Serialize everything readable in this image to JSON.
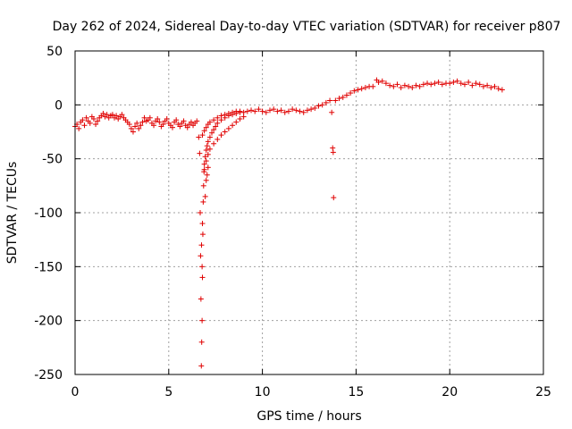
{
  "chart_data": {
    "type": "scatter",
    "title": "Day 262 of 2024, Sidereal Day-to-day VTEC variation (SDTVAR) for receiver p807",
    "xlabel": "GPS time / hours",
    "ylabel": "SDTVAR / TECUs",
    "xlim": [
      0,
      25
    ],
    "ylim": [
      -250,
      50
    ],
    "x_ticks": [
      0,
      5,
      10,
      15,
      20,
      25
    ],
    "y_ticks": [
      -250,
      -200,
      -150,
      -100,
      -50,
      0,
      50
    ],
    "grid": true,
    "marker": "+",
    "color": "#e00000",
    "series": [
      {
        "name": "SDTVAR",
        "points": [
          [
            0.0,
            -20
          ],
          [
            0.1,
            -18
          ],
          [
            0.2,
            -22
          ],
          [
            0.3,
            -16
          ],
          [
            0.4,
            -14
          ],
          [
            0.5,
            -19
          ],
          [
            0.6,
            -12
          ],
          [
            0.7,
            -15
          ],
          [
            0.8,
            -17
          ],
          [
            0.9,
            -11
          ],
          [
            1.0,
            -13
          ],
          [
            1.1,
            -18
          ],
          [
            1.2,
            -15
          ],
          [
            1.3,
            -12
          ],
          [
            1.4,
            -10
          ],
          [
            1.5,
            -8
          ],
          [
            1.6,
            -11
          ],
          [
            1.7,
            -9
          ],
          [
            1.8,
            -12
          ],
          [
            1.9,
            -10
          ],
          [
            2.0,
            -9
          ],
          [
            2.1,
            -12
          ],
          [
            2.2,
            -10
          ],
          [
            2.3,
            -13
          ],
          [
            2.4,
            -11
          ],
          [
            2.5,
            -9
          ],
          [
            2.6,
            -12
          ],
          [
            2.7,
            -14
          ],
          [
            2.8,
            -16
          ],
          [
            2.9,
            -18
          ],
          [
            3.0,
            -22
          ],
          [
            3.1,
            -25
          ],
          [
            3.2,
            -20
          ],
          [
            3.3,
            -17
          ],
          [
            3.4,
            -22
          ],
          [
            3.5,
            -19
          ],
          [
            3.6,
            -16
          ],
          [
            3.7,
            -12
          ],
          [
            3.8,
            -15
          ],
          [
            3.9,
            -14
          ],
          [
            4.0,
            -12
          ],
          [
            4.1,
            -17
          ],
          [
            4.2,
            -19
          ],
          [
            4.3,
            -15
          ],
          [
            4.4,
            -13
          ],
          [
            4.5,
            -16
          ],
          [
            4.6,
            -20
          ],
          [
            4.7,
            -18
          ],
          [
            4.8,
            -15
          ],
          [
            4.9,
            -13
          ],
          [
            5.0,
            -17
          ],
          [
            5.1,
            -19
          ],
          [
            5.2,
            -21
          ],
          [
            5.3,
            -16
          ],
          [
            5.4,
            -14
          ],
          [
            5.5,
            -18
          ],
          [
            5.6,
            -20
          ],
          [
            5.7,
            -17
          ],
          [
            5.8,
            -15
          ],
          [
            5.9,
            -19
          ],
          [
            6.0,
            -21
          ],
          [
            6.1,
            -18
          ],
          [
            6.2,
            -16
          ],
          [
            6.3,
            -19
          ],
          [
            6.4,
            -17
          ],
          [
            6.5,
            -15
          ],
          [
            6.6,
            -30
          ],
          [
            6.65,
            -45
          ],
          [
            6.68,
            -100
          ],
          [
            6.7,
            -140
          ],
          [
            6.72,
            -180
          ],
          [
            6.74,
            -242
          ],
          [
            6.76,
            -220
          ],
          [
            6.78,
            -200
          ],
          [
            6.8,
            -160
          ],
          [
            6.82,
            -120
          ],
          [
            6.84,
            -90
          ],
          [
            6.86,
            -75
          ],
          [
            6.88,
            -62
          ],
          [
            6.9,
            -55
          ],
          [
            6.95,
            -48
          ],
          [
            7.0,
            -42
          ],
          [
            7.05,
            -38
          ],
          [
            7.1,
            -34
          ],
          [
            7.2,
            -30
          ],
          [
            7.3,
            -26
          ],
          [
            7.4,
            -23
          ],
          [
            7.5,
            -20
          ],
          [
            7.6,
            -17
          ],
          [
            7.8,
            -14
          ],
          [
            8.0,
            -12
          ],
          [
            8.2,
            -10
          ],
          [
            8.4,
            -9
          ],
          [
            8.6,
            -8
          ],
          [
            8.8,
            -7
          ],
          [
            6.8,
            -28
          ],
          [
            6.9,
            -24
          ],
          [
            7.0,
            -21
          ],
          [
            7.1,
            -18
          ],
          [
            7.2,
            -16
          ],
          [
            7.4,
            -14
          ],
          [
            7.6,
            -12
          ],
          [
            7.8,
            -10
          ],
          [
            8.0,
            -9
          ],
          [
            8.2,
            -8
          ],
          [
            8.4,
            -7
          ],
          [
            8.6,
            -6
          ],
          [
            8.8,
            -6
          ],
          [
            9.0,
            -7
          ],
          [
            6.9,
            -60
          ],
          [
            7.0,
            -52
          ],
          [
            7.1,
            -46
          ],
          [
            7.2,
            -41
          ],
          [
            7.4,
            -36
          ],
          [
            7.6,
            -32
          ],
          [
            7.8,
            -28
          ],
          [
            8.0,
            -25
          ],
          [
            8.2,
            -22
          ],
          [
            8.4,
            -19
          ],
          [
            8.6,
            -16
          ],
          [
            8.8,
            -13
          ],
          [
            9.0,
            -11
          ],
          [
            6.95,
            -85
          ],
          [
            7.0,
            -70
          ],
          [
            7.05,
            -65
          ],
          [
            7.1,
            -58
          ],
          [
            6.75,
            -130
          ],
          [
            6.78,
            -150
          ],
          [
            6.8,
            -110
          ],
          [
            9.2,
            -6
          ],
          [
            9.4,
            -5
          ],
          [
            9.6,
            -6
          ],
          [
            9.8,
            -4
          ],
          [
            10.0,
            -6
          ],
          [
            10.2,
            -7
          ],
          [
            10.4,
            -5
          ],
          [
            10.6,
            -4
          ],
          [
            10.8,
            -6
          ],
          [
            11.0,
            -5
          ],
          [
            11.2,
            -7
          ],
          [
            11.4,
            -6
          ],
          [
            11.6,
            -4
          ],
          [
            11.8,
            -5
          ],
          [
            12.0,
            -6
          ],
          [
            12.2,
            -7
          ],
          [
            12.4,
            -5
          ],
          [
            12.6,
            -4
          ],
          [
            12.8,
            -3
          ],
          [
            13.0,
            -1
          ],
          [
            13.2,
            0
          ],
          [
            13.4,
            2
          ],
          [
            13.6,
            4
          ],
          [
            13.7,
            -7
          ],
          [
            13.75,
            -40
          ],
          [
            13.78,
            -44
          ],
          [
            13.8,
            -86
          ],
          [
            13.9,
            4
          ],
          [
            14.1,
            6
          ],
          [
            14.3,
            7
          ],
          [
            14.5,
            9
          ],
          [
            14.7,
            11
          ],
          [
            14.9,
            13
          ],
          [
            15.1,
            14
          ],
          [
            15.3,
            15
          ],
          [
            15.5,
            16
          ],
          [
            15.7,
            17
          ],
          [
            15.9,
            17
          ],
          [
            16.1,
            23
          ],
          [
            16.2,
            21
          ],
          [
            16.4,
            22
          ],
          [
            16.6,
            20
          ],
          [
            16.8,
            18
          ],
          [
            17.0,
            17
          ],
          [
            17.2,
            19
          ],
          [
            17.4,
            16
          ],
          [
            17.6,
            18
          ],
          [
            17.8,
            17
          ],
          [
            18.0,
            16
          ],
          [
            18.2,
            18
          ],
          [
            18.4,
            17
          ],
          [
            18.6,
            19
          ],
          [
            18.8,
            20
          ],
          [
            19.0,
            19
          ],
          [
            19.2,
            20
          ],
          [
            19.4,
            21
          ],
          [
            19.6,
            19
          ],
          [
            19.8,
            20
          ],
          [
            20.0,
            20
          ],
          [
            20.2,
            21
          ],
          [
            20.4,
            22
          ],
          [
            20.6,
            20
          ],
          [
            20.8,
            19
          ],
          [
            21.0,
            21
          ],
          [
            21.2,
            18
          ],
          [
            21.4,
            20
          ],
          [
            21.6,
            19
          ],
          [
            21.8,
            17
          ],
          [
            22.0,
            18
          ],
          [
            22.2,
            16
          ],
          [
            22.4,
            17
          ],
          [
            22.6,
            15
          ],
          [
            22.8,
            14
          ]
        ]
      }
    ]
  }
}
